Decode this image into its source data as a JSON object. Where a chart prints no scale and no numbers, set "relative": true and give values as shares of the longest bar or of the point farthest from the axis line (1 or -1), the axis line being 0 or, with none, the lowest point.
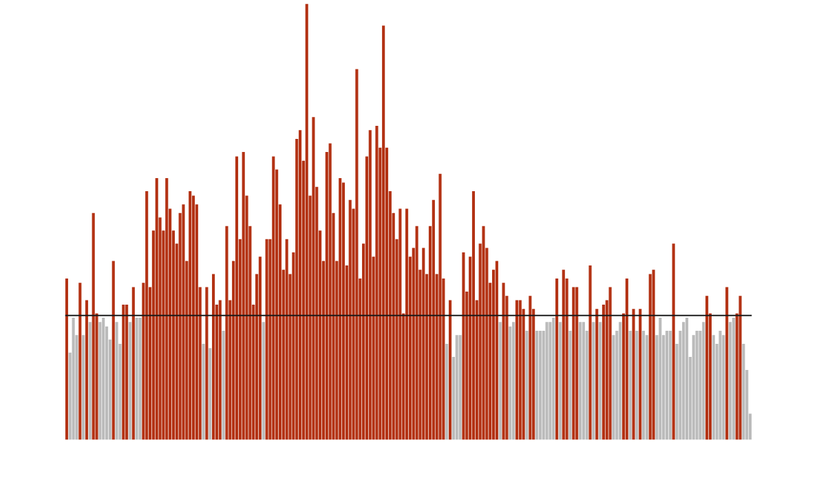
{
  "chart_data": {
    "type": "bar",
    "relative": true,
    "categories": [
      null,
      null,
      null,
      null,
      null,
      null,
      null,
      null,
      null,
      null,
      null,
      null,
      null,
      null,
      null,
      null,
      null,
      null,
      null,
      null,
      null,
      null,
      null,
      null,
      null,
      null,
      null,
      null,
      null,
      null,
      null,
      null,
      null,
      null,
      null,
      null,
      null,
      null,
      null,
      null,
      null,
      null,
      null,
      null,
      null,
      null,
      null,
      null,
      null,
      null,
      null,
      null,
      null,
      null,
      null,
      null,
      null,
      null,
      null,
      null,
      null,
      null,
      null,
      null,
      null,
      null,
      null,
      null,
      null,
      null,
      null,
      null,
      null,
      null,
      null,
      null,
      null,
      null,
      null,
      null,
      null,
      null,
      null,
      null,
      null,
      null,
      null,
      null,
      null,
      null,
      null,
      null,
      null,
      null,
      null,
      null,
      null,
      null,
      null,
      null,
      null,
      null,
      null,
      null,
      null,
      null,
      null,
      null,
      null,
      null,
      null,
      null,
      null,
      null,
      null,
      null,
      null,
      null,
      null,
      null,
      null,
      null,
      null,
      null,
      null,
      null,
      null,
      null,
      null,
      null,
      null,
      null,
      null,
      null,
      null,
      null,
      null,
      null,
      null,
      null,
      null,
      null,
      null,
      null,
      null,
      null,
      null,
      null,
      null,
      null,
      null,
      null,
      null,
      null,
      null,
      null,
      null,
      null,
      null,
      null,
      null,
      null,
      null,
      null,
      null,
      null,
      null,
      null,
      null,
      null,
      null,
      null,
      null,
      null,
      null,
      null,
      null,
      null,
      null,
      null,
      null,
      null,
      null,
      null,
      null,
      null,
      null,
      null,
      null,
      null,
      null,
      null,
      null,
      null,
      null,
      null,
      null,
      null,
      null,
      null,
      null,
      null,
      null,
      null,
      null,
      null
    ],
    "values": [
      0.37,
      0.2,
      0.28,
      0.24,
      0.36,
      0.24,
      0.32,
      0.27,
      0.52,
      0.29,
      0.27,
      0.28,
      0.26,
      0.23,
      0.41,
      0.27,
      0.22,
      0.31,
      0.31,
      0.27,
      0.35,
      0.28,
      0.28,
      0.36,
      0.57,
      0.35,
      0.48,
      0.6,
      0.51,
      0.48,
      0.6,
      0.53,
      0.48,
      0.45,
      0.52,
      0.54,
      0.41,
      0.57,
      0.56,
      0.54,
      0.35,
      0.22,
      0.35,
      0.21,
      0.38,
      0.31,
      0.32,
      0.25,
      0.49,
      0.32,
      0.41,
      0.65,
      0.46,
      0.66,
      0.56,
      0.49,
      0.31,
      0.38,
      0.42,
      0.27,
      0.46,
      0.46,
      0.65,
      0.62,
      0.54,
      0.39,
      0.46,
      0.38,
      0.43,
      0.69,
      0.71,
      0.64,
      1,
      0.56,
      0.74,
      0.58,
      0.48,
      0.41,
      0.66,
      0.68,
      0.52,
      0.41,
      0.6,
      0.59,
      0.4,
      0.55,
      0.53,
      0.85,
      0.37,
      0.45,
      0.65,
      0.71,
      0.42,
      0.72,
      0.67,
      0.95,
      0.67,
      0.57,
      0.52,
      0.46,
      0.53,
      0.29,
      0.53,
      0.42,
      0.44,
      0.49,
      0.39,
      0.44,
      0.38,
      0.49,
      0.55,
      0.38,
      0.61,
      0.37,
      0.22,
      0.32,
      0.19,
      0.24,
      0.24,
      0.43,
      0.34,
      0.42,
      0.57,
      0.32,
      0.45,
      0.49,
      0.44,
      0.36,
      0.39,
      0.41,
      0.27,
      0.36,
      0.33,
      0.26,
      0.27,
      0.32,
      0.32,
      0.3,
      0.25,
      0.33,
      0.3,
      0.25,
      0.25,
      0.25,
      0.27,
      0.27,
      0.28,
      0.37,
      0.27,
      0.39,
      0.37,
      0.25,
      0.35,
      0.35,
      0.27,
      0.27,
      0.25,
      0.4,
      0.27,
      0.3,
      0.27,
      0.31,
      0.32,
      0.35,
      0.24,
      0.25,
      0.27,
      0.29,
      0.37,
      0.25,
      0.3,
      0.25,
      0.3,
      0.25,
      0.24,
      0.38,
      0.39,
      0.24,
      0.28,
      0.24,
      0.25,
      0.25,
      0.45,
      0.22,
      0.25,
      0.27,
      0.28,
      0.19,
      0.24,
      0.25,
      0.25,
      0.27,
      0.33,
      0.29,
      0.24,
      0.22,
      0.25,
      0.24,
      0.35,
      0.27,
      0.28,
      0.29,
      0.33,
      0.22,
      0.16,
      0.06
    ],
    "colors": [
      "#b33214",
      "#bbbbbb",
      "#bbbbbb",
      "#bbbbbb",
      "#b33214",
      "#bbbbbb",
      "#b33214",
      "#bbbbbb",
      "#b33214",
      "#b33214",
      "#bbbbbb",
      "#bbbbbb",
      "#bbbbbb",
      "#bbbbbb",
      "#b33214",
      "#bbbbbb",
      "#bbbbbb",
      "#b33214",
      "#b33214",
      "#bbbbbb",
      "#b33214",
      "#bbbbbb",
      "#bbbbbb",
      "#b33214",
      "#b33214",
      "#b33214",
      "#b33214",
      "#b33214",
      "#b33214",
      "#b33214",
      "#b33214",
      "#b33214",
      "#b33214",
      "#b33214",
      "#b33214",
      "#b33214",
      "#b33214",
      "#b33214",
      "#b33214",
      "#b33214",
      "#b33214",
      "#bbbbbb",
      "#b33214",
      "#bbbbbb",
      "#b33214",
      "#b33214",
      "#b33214",
      "#bbbbbb",
      "#b33214",
      "#b33214",
      "#b33214",
      "#b33214",
      "#b33214",
      "#b33214",
      "#b33214",
      "#b33214",
      "#b33214",
      "#b33214",
      "#b33214",
      "#bbbbbb",
      "#b33214",
      "#b33214",
      "#b33214",
      "#b33214",
      "#b33214",
      "#b33214",
      "#b33214",
      "#b33214",
      "#b33214",
      "#b33214",
      "#b33214",
      "#b33214",
      "#b33214",
      "#b33214",
      "#b33214",
      "#b33214",
      "#b33214",
      "#b33214",
      "#b33214",
      "#b33214",
      "#b33214",
      "#b33214",
      "#b33214",
      "#b33214",
      "#b33214",
      "#b33214",
      "#b33214",
      "#b33214",
      "#b33214",
      "#b33214",
      "#b33214",
      "#b33214",
      "#b33214",
      "#b33214",
      "#b33214",
      "#b33214",
      "#b33214",
      "#b33214",
      "#b33214",
      "#b33214",
      "#b33214",
      "#b33214",
      "#b33214",
      "#b33214",
      "#b33214",
      "#b33214",
      "#b33214",
      "#b33214",
      "#b33214",
      "#b33214",
      "#b33214",
      "#b33214",
      "#b33214",
      "#b33214",
      "#bbbbbb",
      "#b33214",
      "#bbbbbb",
      "#bbbbbb",
      "#bbbbbb",
      "#b33214",
      "#b33214",
      "#b33214",
      "#b33214",
      "#b33214",
      "#b33214",
      "#b33214",
      "#b33214",
      "#b33214",
      "#b33214",
      "#b33214",
      "#bbbbbb",
      "#b33214",
      "#b33214",
      "#bbbbbb",
      "#bbbbbb",
      "#b33214",
      "#b33214",
      "#b33214",
      "#bbbbbb",
      "#b33214",
      "#b33214",
      "#bbbbbb",
      "#bbbbbb",
      "#bbbbbb",
      "#bbbbbb",
      "#bbbbbb",
      "#bbbbbb",
      "#b33214",
      "#bbbbbb",
      "#b33214",
      "#b33214",
      "#bbbbbb",
      "#b33214",
      "#b33214",
      "#bbbbbb",
      "#bbbbbb",
      "#bbbbbb",
      "#b33214",
      "#bbbbbb",
      "#b33214",
      "#bbbbbb",
      "#b33214",
      "#b33214",
      "#b33214",
      "#bbbbbb",
      "#bbbbbb",
      "#bbbbbb",
      "#b33214",
      "#b33214",
      "#bbbbbb",
      "#b33214",
      "#bbbbbb",
      "#b33214",
      "#bbbbbb",
      "#bbbbbb",
      "#b33214",
      "#b33214",
      "#bbbbbb",
      "#bbbbbb",
      "#bbbbbb",
      "#bbbbbb",
      "#bbbbbb",
      "#b33214",
      "#bbbbbb",
      "#bbbbbb",
      "#bbbbbb",
      "#bbbbbb",
      "#bbbbbb",
      "#bbbbbb",
      "#bbbbbb",
      "#bbbbbb",
      "#bbbbbb",
      "#b33214",
      "#b33214",
      "#bbbbbb",
      "#bbbbbb",
      "#bbbbbb",
      "#bbbbbb",
      "#b33214",
      "#bbbbbb",
      "#bbbbbb",
      "#b33214",
      "#b33214",
      "#bbbbbb",
      "#bbbbbb",
      "#bbbbbb"
    ],
    "ref_lines": [
      {
        "axis": "y",
        "value": 0.285,
        "color": "#1a1a1a"
      }
    ]
  }
}
